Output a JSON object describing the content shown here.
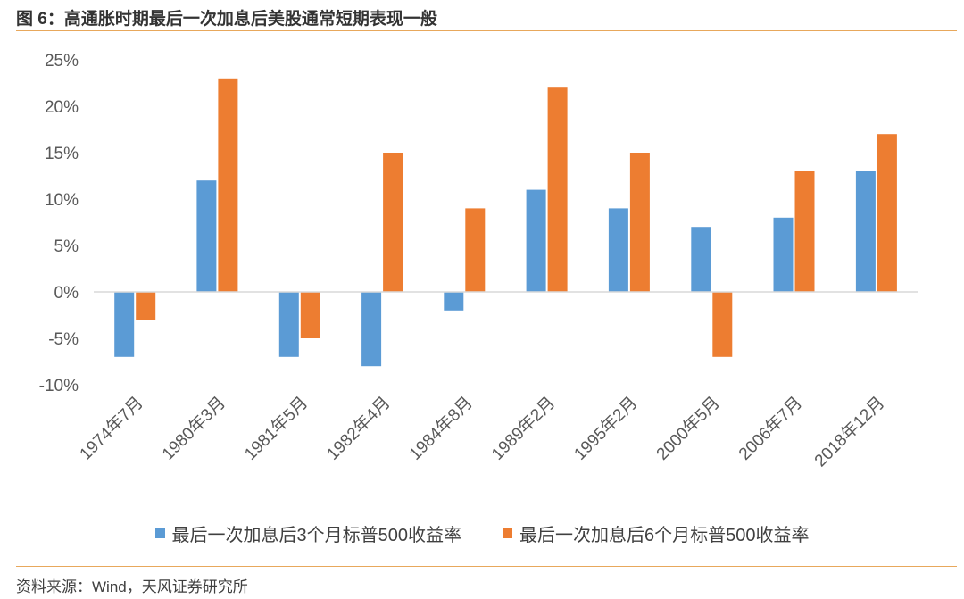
{
  "figure": {
    "title": "图 6：高通胀时期最后一次加息后美股通常短期表现一般",
    "source": "资料来源：Wind，天风证券研究所"
  },
  "colors": {
    "series1": "#5B9BD5",
    "series2": "#ED7D31",
    "rule": "#E8A85C",
    "axis": "#D9D9D9"
  },
  "chart_data": {
    "type": "bar",
    "title": "",
    "xlabel": "",
    "ylabel": "",
    "ylim": [
      -10,
      25
    ],
    "yticks": [
      25,
      20,
      15,
      10,
      5,
      0,
      -5,
      -10
    ],
    "ytick_labels": [
      "25%",
      "20%",
      "15%",
      "10%",
      "5%",
      "0%",
      "-5%",
      "-10%"
    ],
    "grid": false,
    "legend_position": "bottom",
    "categories": [
      "1974年7月",
      "1980年3月",
      "1981年5月",
      "1982年4月",
      "1984年8月",
      "1989年2月",
      "1995年2月",
      "2000年5月",
      "2006年7月",
      "2018年12月"
    ],
    "series": [
      {
        "name": "最后一次加息后3个月标普500收益率",
        "values": [
          -7,
          12,
          -7,
          -8,
          -2,
          11,
          9,
          7,
          8,
          13
        ]
      },
      {
        "name": "最后一次加息后6个月标普500收益率",
        "values": [
          -3,
          23,
          -5,
          15,
          9,
          22,
          15,
          -7,
          13,
          17
        ]
      }
    ]
  }
}
